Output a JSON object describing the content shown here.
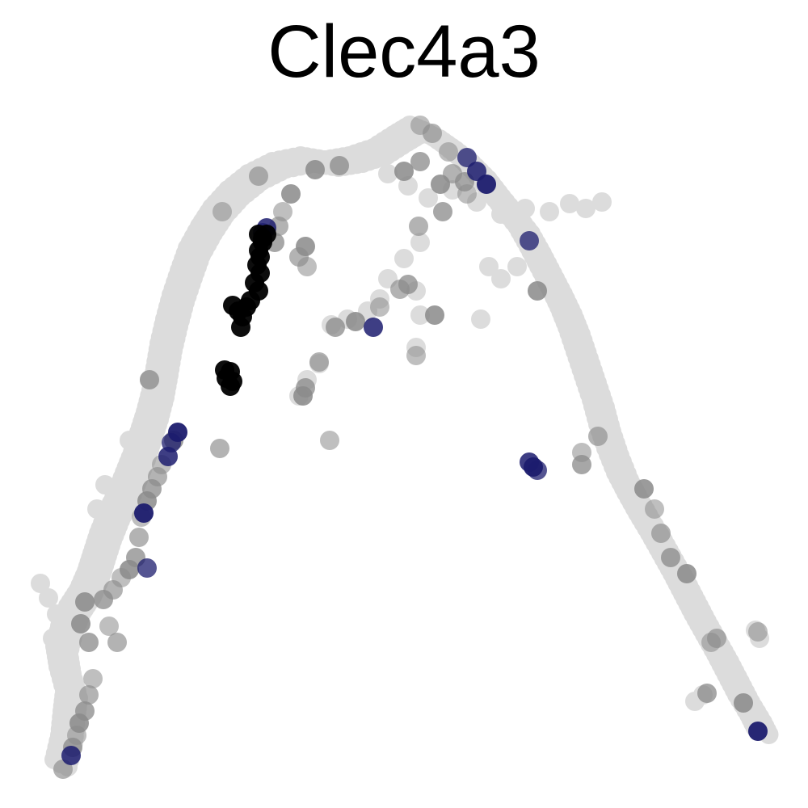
{
  "chart_data": {
    "type": "scatter",
    "title": "Clec4a3",
    "xlabel": "",
    "ylabel": "",
    "axes_visible": false,
    "grid": false,
    "legend": "none",
    "colors": {
      "low": "#dcdcdc",
      "mid": "#8a8a8a",
      "high_blue": "#1c1c6e",
      "high_dark": "#000000"
    },
    "background_path": [
      [
        75,
        945
      ],
      [
        82,
        915
      ],
      [
        85,
        885
      ],
      [
        88,
        860
      ],
      [
        80,
        830
      ],
      [
        76,
        805
      ],
      [
        82,
        780
      ],
      [
        92,
        755
      ],
      [
        105,
        735
      ],
      [
        115,
        712
      ],
      [
        122,
        690
      ],
      [
        130,
        665
      ],
      [
        140,
        640
      ],
      [
        152,
        615
      ],
      [
        162,
        590
      ],
      [
        172,
        565
      ],
      [
        180,
        540
      ],
      [
        188,
        515
      ],
      [
        195,
        488
      ],
      [
        200,
        460
      ],
      [
        205,
        430
      ],
      [
        212,
        400
      ],
      [
        220,
        370
      ],
      [
        230,
        340
      ],
      [
        240,
        312
      ],
      [
        255,
        285
      ],
      [
        270,
        262
      ],
      [
        290,
        240
      ],
      [
        315,
        220
      ],
      [
        345,
        205
      ],
      [
        380,
        198
      ],
      [
        410,
        203
      ],
      [
        440,
        198
      ],
      [
        470,
        188
      ],
      [
        495,
        172
      ],
      [
        515,
        160
      ],
      [
        535,
        168
      ],
      [
        555,
        182
      ],
      [
        575,
        198
      ],
      [
        595,
        218
      ],
      [
        612,
        240
      ],
      [
        630,
        262
      ],
      [
        648,
        285
      ],
      [
        662,
        310
      ],
      [
        675,
        335
      ],
      [
        688,
        360
      ],
      [
        700,
        385
      ],
      [
        710,
        410
      ],
      [
        720,
        440
      ],
      [
        730,
        470
      ],
      [
        740,
        500
      ],
      [
        748,
        530
      ],
      [
        758,
        560
      ],
      [
        770,
        590
      ],
      [
        783,
        615
      ],
      [
        797,
        640
      ],
      [
        812,
        665
      ],
      [
        826,
        690
      ],
      [
        840,
        715
      ],
      [
        853,
        740
      ],
      [
        866,
        765
      ],
      [
        880,
        790
      ],
      [
        894,
        815
      ],
      [
        907,
        840
      ],
      [
        920,
        865
      ],
      [
        935,
        890
      ],
      [
        945,
        910
      ]
    ],
    "background_extra": [
      [
        50,
        722
      ],
      [
        60,
        740
      ],
      [
        70,
        760
      ],
      [
        65,
        790
      ],
      [
        120,
        630
      ],
      [
        130,
        600
      ],
      [
        160,
        545
      ],
      [
        185,
        470
      ],
      [
        325,
        210
      ],
      [
        300,
        230
      ],
      [
        480,
        215
      ],
      [
        505,
        230
      ],
      [
        530,
        245
      ],
      [
        560,
        235
      ],
      [
        590,
        250
      ],
      [
        620,
        265
      ],
      [
        650,
        258
      ],
      [
        680,
        262
      ],
      [
        705,
        252
      ],
      [
        725,
        258
      ],
      [
        745,
        250
      ],
      [
        605,
        330
      ],
      [
        620,
        345
      ],
      [
        640,
        330
      ],
      [
        520,
        300
      ],
      [
        500,
        320
      ],
      [
        480,
        345
      ],
      [
        470,
        370
      ],
      [
        455,
        385
      ],
      [
        430,
        395
      ],
      [
        410,
        402
      ],
      [
        515,
        360
      ],
      [
        520,
        390
      ],
      [
        515,
        430
      ],
      [
        595,
        395
      ],
      [
        395,
        450
      ],
      [
        380,
        470
      ],
      [
        370,
        490
      ],
      [
        935,
        780
      ],
      [
        940,
        790
      ],
      [
        870,
        860
      ],
      [
        860,
        868
      ]
    ],
    "branch_grey": [
      [
        520,
        155
      ],
      [
        535,
        165
      ],
      [
        520,
        200
      ],
      [
        500,
        212
      ],
      [
        555,
        188
      ],
      [
        560,
        215
      ],
      [
        575,
        225
      ],
      [
        545,
        228
      ],
      [
        578,
        240
      ],
      [
        518,
        280
      ],
      [
        548,
        262
      ],
      [
        360,
        240
      ],
      [
        350,
        262
      ],
      [
        345,
        280
      ],
      [
        340,
        300
      ],
      [
        378,
        305
      ],
      [
        380,
        330
      ],
      [
        370,
        318
      ],
      [
        420,
        205
      ],
      [
        390,
        210
      ],
      [
        275,
        262
      ],
      [
        320,
        218
      ],
      [
        415,
        405
      ],
      [
        440,
        398
      ],
      [
        470,
        380
      ],
      [
        495,
        358
      ],
      [
        505,
        352
      ],
      [
        538,
        390
      ],
      [
        515,
        440
      ],
      [
        395,
        448
      ],
      [
        378,
        480
      ],
      [
        375,
        490
      ],
      [
        408,
        545
      ],
      [
        272,
        555
      ],
      [
        185,
        470
      ],
      [
        215,
        545
      ],
      [
        200,
        575
      ],
      [
        195,
        590
      ],
      [
        188,
        605
      ],
      [
        182,
        620
      ],
      [
        175,
        640
      ],
      [
        172,
        665
      ],
      [
        168,
        690
      ],
      [
        160,
        705
      ],
      [
        150,
        715
      ],
      [
        140,
        730
      ],
      [
        128,
        742
      ],
      [
        105,
        745
      ],
      [
        135,
        775
      ],
      [
        145,
        795
      ],
      [
        110,
        795
      ],
      [
        100,
        772
      ],
      [
        115,
        840
      ],
      [
        110,
        860
      ],
      [
        105,
        880
      ],
      [
        98,
        895
      ],
      [
        95,
        910
      ],
      [
        78,
        952
      ],
      [
        90,
        925
      ],
      [
        665,
        360
      ],
      [
        720,
        560
      ],
      [
        740,
        540
      ],
      [
        720,
        575
      ],
      [
        797,
        605
      ],
      [
        810,
        630
      ],
      [
        818,
        660
      ],
      [
        830,
        690
      ],
      [
        850,
        710
      ],
      [
        880,
        795
      ],
      [
        887,
        790
      ],
      [
        875,
        858
      ],
      [
        920,
        870
      ],
      [
        938,
        782
      ]
    ],
    "branch_dark": [
      [
        330,
        290
      ],
      [
        325,
        300
      ],
      [
        320,
        310
      ],
      [
        322,
        318
      ],
      [
        318,
        328
      ],
      [
        322,
        338
      ],
      [
        315,
        350
      ],
      [
        320,
        360
      ],
      [
        310,
        372
      ],
      [
        305,
        380
      ],
      [
        300,
        392
      ],
      [
        298,
        405
      ],
      [
        295,
        385
      ],
      [
        288,
        378
      ],
      [
        285,
        460
      ],
      [
        280,
        468
      ],
      [
        285,
        478
      ],
      [
        278,
        458
      ],
      [
        288,
        472
      ],
      [
        320,
        290
      ],
      [
        325,
        295
      ]
    ],
    "branch_blue": [
      [
        578,
        195
      ],
      [
        590,
        212
      ],
      [
        602,
        228
      ],
      [
        655,
        298
      ],
      [
        462,
        405
      ],
      [
        220,
        535
      ],
      [
        212,
        548
      ],
      [
        208,
        565
      ],
      [
        178,
        635
      ],
      [
        182,
        703
      ],
      [
        88,
        935
      ],
      [
        660,
        578
      ],
      [
        665,
        582
      ],
      [
        655,
        572
      ],
      [
        938,
        905
      ],
      [
        325,
        288
      ],
      [
        330,
        282
      ]
    ]
  }
}
